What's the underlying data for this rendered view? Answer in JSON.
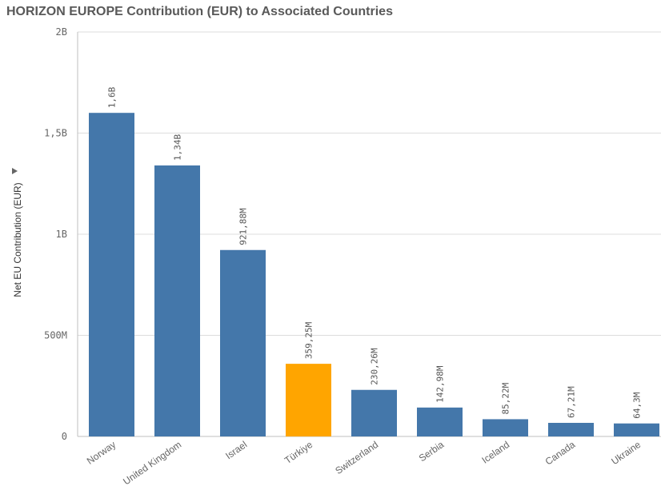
{
  "chart_data": {
    "type": "bar",
    "title": "HORIZON EUROPE Contribution (EUR) to Associated Countries",
    "xlabel": "",
    "ylabel": "Net EU Contribution (EUR)",
    "ylim": [
      0,
      2000000000
    ],
    "yticks": [
      {
        "value": 0,
        "label": "0"
      },
      {
        "value": 500000000,
        "label": "500M"
      },
      {
        "value": 1000000000,
        "label": "1B"
      },
      {
        "value": 1500000000,
        "label": "1,5B"
      },
      {
        "value": 2000000000,
        "label": "2B"
      }
    ],
    "categories": [
      "Norway",
      "United Kingdom",
      "Israel",
      "Türkiye",
      "Switzerland",
      "Serbia",
      "Iceland",
      "Canada",
      "Ukraine"
    ],
    "values": [
      1600000000,
      1340000000,
      921880000,
      359250000,
      230260000,
      142980000,
      85220000,
      67210000,
      64300000
    ],
    "data_labels": [
      "1,6B",
      "1,34B",
      "921,88M",
      "359,25M",
      "230,26M",
      "142,98M",
      "85,22M",
      "67,21M",
      "64,3M"
    ],
    "bar_colors": [
      "#4477aa",
      "#4477aa",
      "#4477aa",
      "#ffa500",
      "#4477aa",
      "#4477aa",
      "#4477aa",
      "#4477aa",
      "#4477aa"
    ],
    "grid": true,
    "legend": "none"
  }
}
